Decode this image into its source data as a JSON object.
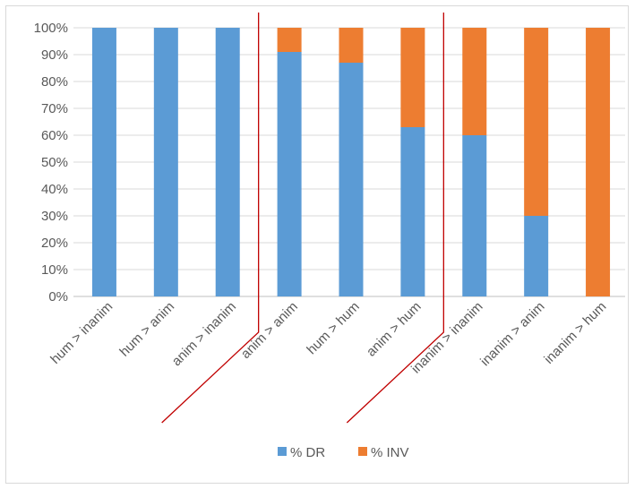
{
  "chart_data": {
    "type": "bar",
    "stacked": true,
    "percent": true,
    "categories": [
      "hum > inanim",
      "hum > anim",
      "anim > inanim",
      "anim > anim",
      "hum > hum",
      "anim > hum",
      "inanim > inanim",
      "inanim > anim",
      "inanim > hum"
    ],
    "series": [
      {
        "name": "% DR",
        "color": "#5b9bd5",
        "values": [
          100,
          100,
          100,
          91,
          87,
          63,
          60,
          30,
          0
        ]
      },
      {
        "name": "% INV",
        "color": "#ed7d31",
        "values": [
          0,
          0,
          0,
          9,
          13,
          37,
          40,
          70,
          100
        ]
      }
    ],
    "yticks": [
      "0%",
      "10%",
      "20%",
      "30%",
      "40%",
      "50%",
      "60%",
      "70%",
      "80%",
      "90%",
      "100%"
    ],
    "ylim": [
      0,
      100
    ],
    "grid": true,
    "legend_position": "bottom",
    "separators": {
      "color": "#c00000",
      "after_categories": [
        "anim > inanim",
        "anim > hum"
      ]
    }
  }
}
